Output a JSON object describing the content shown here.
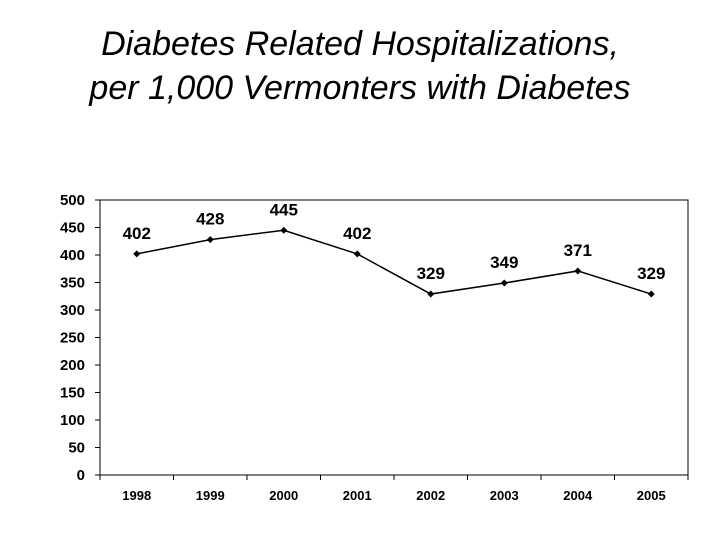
{
  "chart_data": {
    "type": "line",
    "title_line1": "Diabetes Related Hospitalizations,",
    "title_line2": "per 1,000 Vermonters with Diabetes",
    "xlabel": "",
    "ylabel": "",
    "categories": [
      "1998",
      "1999",
      "2000",
      "2001",
      "2002",
      "2003",
      "2004",
      "2005"
    ],
    "series": [
      {
        "name": "Hospitalizations per 1,000",
        "values": [
          402,
          428,
          445,
          402,
          329,
          349,
          371,
          329
        ]
      }
    ],
    "data_labels": [
      "402",
      "428",
      "445",
      "402",
      "329",
      "349",
      "371",
      "329"
    ],
    "ylim": [
      0,
      500
    ],
    "yticks": [
      0,
      50,
      100,
      150,
      200,
      250,
      300,
      350,
      400,
      450,
      500
    ],
    "grid": false,
    "legend": "none",
    "line_color": "#000000"
  }
}
